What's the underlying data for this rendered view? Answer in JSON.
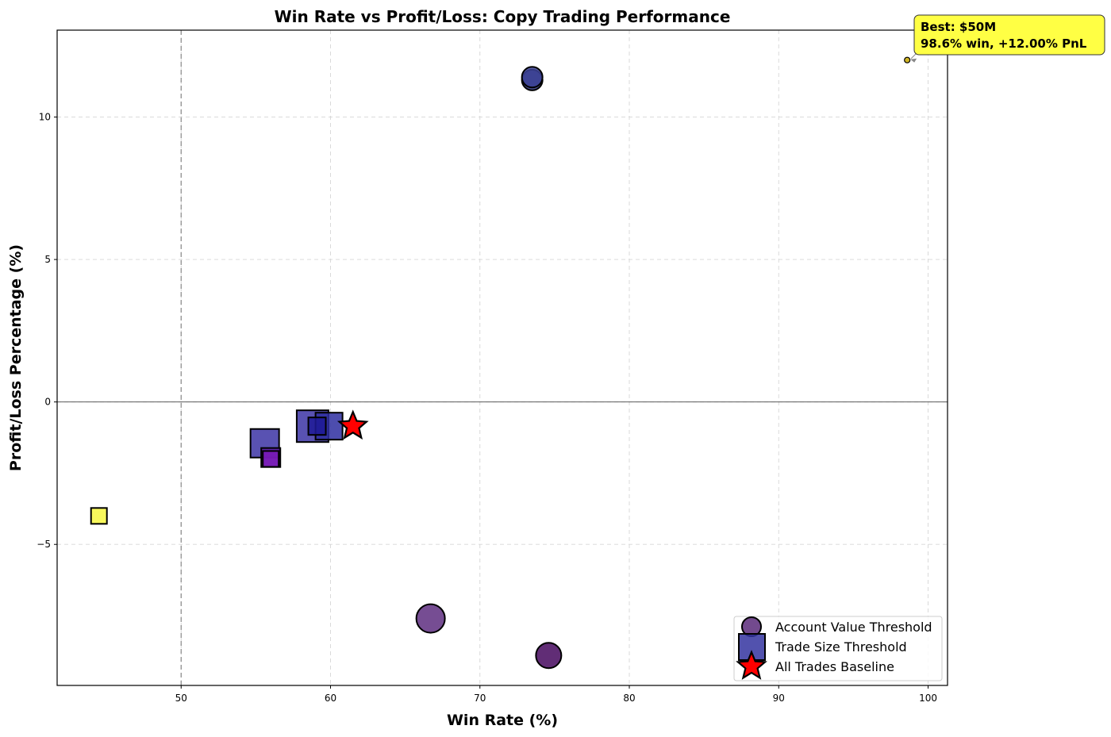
{
  "chart_data": {
    "type": "scatter",
    "title": "Win Rate vs Profit/Loss: Copy Trading Performance",
    "xlabel": "Win Rate (%)",
    "ylabel": "Profit/Loss Percentage (%)",
    "xlim": [
      41.7,
      101.3
    ],
    "ylim": [
      -9.95,
      13.05
    ],
    "x_ticks": [
      50,
      60,
      70,
      80,
      90,
      100
    ],
    "y_ticks": [
      -5,
      0,
      5,
      10
    ],
    "x_tick_labels": [
      "50",
      "60",
      "70",
      "80",
      "90",
      "100"
    ],
    "y_tick_labels": [
      "−5",
      "0",
      "5",
      "10"
    ],
    "grid": true,
    "reference_lines": {
      "vertical_x": 50,
      "horizontal_y": 0
    },
    "legend_position": "lower-right",
    "series": [
      {
        "name": "Account Value Threshold",
        "marker": "circle",
        "legend_color": "#5b2a7a",
        "points": [
          {
            "x": 73.5,
            "y": 11.3,
            "color": "#262a70"
          },
          {
            "x": 73.5,
            "y": 11.4,
            "color": "#3c4296"
          },
          {
            "x": 66.7,
            "y": -7.6,
            "color": "#5e2e80"
          },
          {
            "x": 74.6,
            "y": -8.9,
            "color": "#45085e"
          },
          {
            "x": 98.6,
            "y": 12.0,
            "color": "#c8a800"
          }
        ]
      },
      {
        "name": "Trade Size Threshold",
        "marker": "square",
        "legend_color": "#3434a0",
        "points": [
          {
            "x": 55.6,
            "y": -1.45,
            "color": "#3c34a4"
          },
          {
            "x": 58.8,
            "y": -0.85,
            "color": "#3c34a4"
          },
          {
            "x": 59.9,
            "y": -0.85,
            "color": "#2e2ea0"
          },
          {
            "x": 59.1,
            "y": -0.85,
            "color": "#1e1a96"
          },
          {
            "x": 56.0,
            "y": -1.95,
            "color": "#5a1aa0"
          },
          {
            "x": 56.0,
            "y": -2.0,
            "color": "#7a1ab8"
          },
          {
            "x": 44.5,
            "y": -4.0,
            "color": "#f7f740"
          }
        ]
      },
      {
        "name": "All Trades Baseline",
        "marker": "star",
        "legend_color": "#ff0000",
        "points": [
          {
            "x": 61.5,
            "y": -0.85,
            "color": "#ff0000"
          }
        ]
      }
    ],
    "annotation": {
      "line1": "Best: $50M",
      "line2": "98.6% win, +12.00% PnL",
      "x": 98.6,
      "y": 12.0,
      "box_color": "#ffff44"
    }
  }
}
